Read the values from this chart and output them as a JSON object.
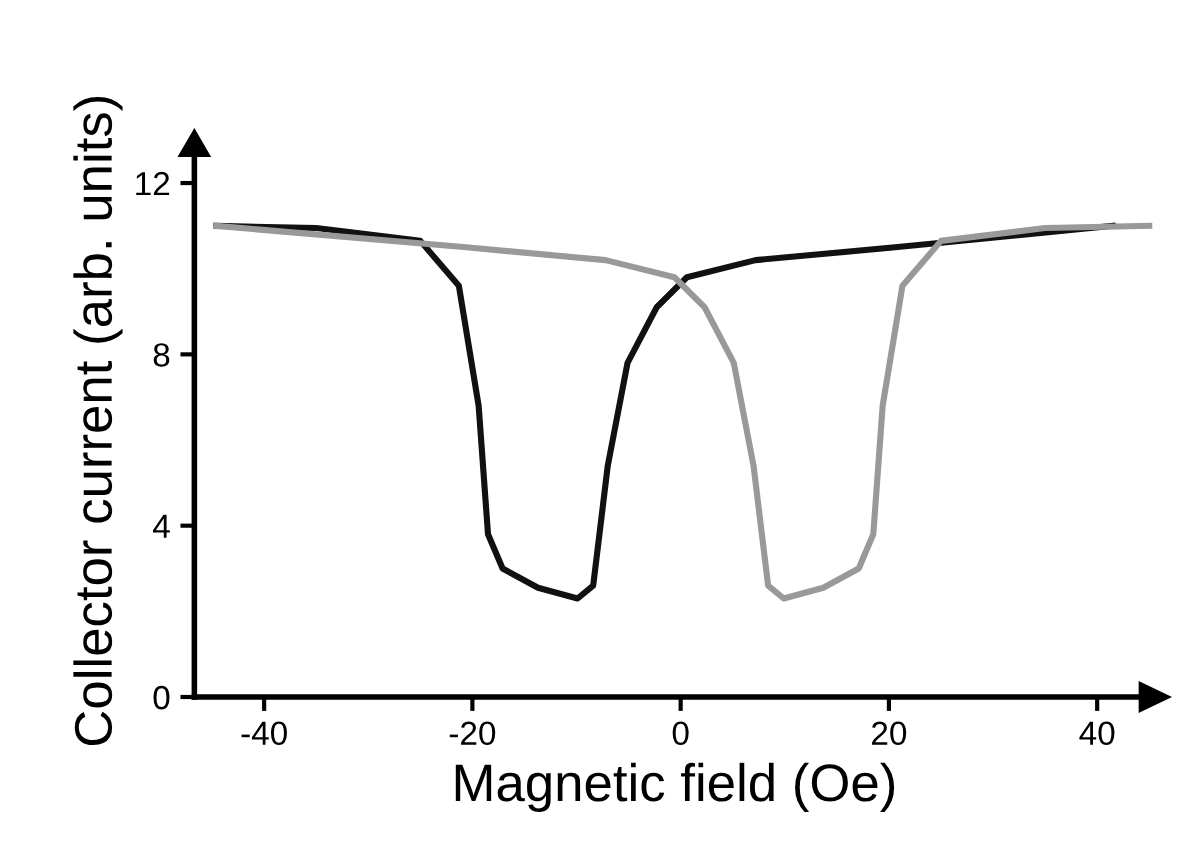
{
  "chart_data": {
    "type": "line",
    "xlabel": "Magnetic field (Oe)",
    "ylabel": "Collector current (arb. units)",
    "xlim": [
      -46.7,
      45.5
    ],
    "ylim": [
      0,
      12.9
    ],
    "xticks": [
      -40,
      -20,
      0,
      20,
      40
    ],
    "yticks": [
      0,
      4,
      8,
      12
    ],
    "grid": false,
    "legend": false,
    "marker": "none",
    "line_style": "solid",
    "series": [
      {
        "color": "#111111",
        "x": [
          -44.6,
          -35,
          -25,
          -21.3,
          -19.4,
          -18.5,
          -17.1,
          -13.7,
          -9.9,
          -8.4,
          -7,
          -5.1,
          -2.3,
          0.6,
          7.2,
          20.6,
          41.5
        ],
        "values": [
          11.0,
          10.95,
          10.65,
          9.6,
          6.8,
          3.8,
          3.0,
          2.55,
          2.3,
          2.6,
          5.4,
          7.8,
          9.1,
          9.8,
          10.2,
          10.5,
          11.0
        ]
      },
      {
        "color": "#999999",
        "x": [
          -44.6,
          -20.6,
          -7.2,
          -0.6,
          2.3,
          5.1,
          7,
          8.4,
          9.9,
          13.7,
          17.1,
          18.5,
          19.4,
          21.3,
          25,
          35,
          45
        ],
        "values": [
          11.0,
          10.5,
          10.2,
          9.8,
          9.1,
          7.8,
          5.4,
          2.6,
          2.3,
          2.55,
          3.0,
          3.8,
          6.8,
          9.6,
          10.65,
          10.95,
          11.0
        ]
      }
    ]
  }
}
